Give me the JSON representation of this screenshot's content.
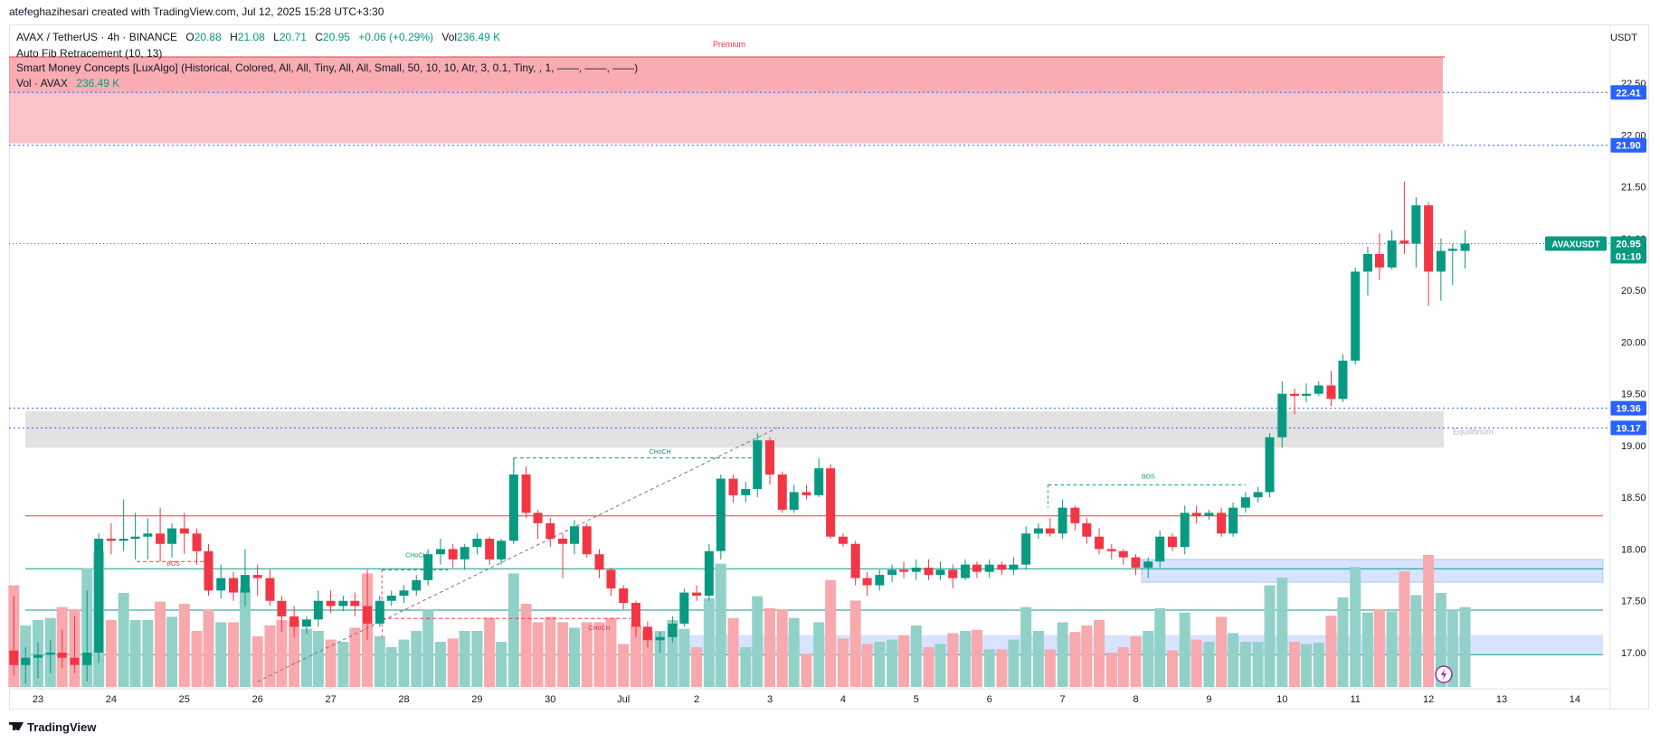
{
  "caption": "atefeghazihesari created with TradingView.com, Jul 12, 2025 15:28 UTC+3:30",
  "legend": {
    "symbol": "AVAX / TetherUS · 4h · BINANCE",
    "o_label": "O",
    "o_value": "20.88",
    "h_label": "H",
    "h_value": "21.08",
    "l_label": "L",
    "l_value": "20.71",
    "c_label": "C",
    "c_value": "20.95",
    "change": "+0.06 (+0.29%)",
    "vol_label": "Vol",
    "vol_value": "236.49 K",
    "indicator_fib": "Auto Fib Retracement (10, 13)",
    "indicator_smc": "Smart Money Concepts [LuxAlgo] (Historical, Colored, All, All, Tiny, All, All, Small, 50, 10, 10, Atr, 3, 0.1, Tiny, , 1, ——, ——, ——)",
    "indicator_vol": "Vol · AVAX",
    "indicator_vol_value": "236.49 K"
  },
  "currency_label": "USDT",
  "footer": "TradingView",
  "colors": {
    "up": "#089981",
    "down": "#f23645",
    "vol_up": "#92d1c8",
    "vol_down": "#f7a9ae"
  },
  "chart_data": {
    "type": "candlestick",
    "ylim": [
      16.7,
      22.75
    ],
    "yticks": [
      "17.00",
      "17.50",
      "18.00",
      "18.50",
      "19.00",
      "19.50",
      "20.00",
      "20.50",
      "21.00",
      "21.50",
      "22.00",
      "22.50"
    ],
    "xticks": [
      {
        "label": "23",
        "day": 23
      },
      {
        "label": "24",
        "day": 24
      },
      {
        "label": "25",
        "day": 25
      },
      {
        "label": "26",
        "day": 26
      },
      {
        "label": "27",
        "day": 27
      },
      {
        "label": "28",
        "day": 28
      },
      {
        "label": "29",
        "day": 29
      },
      {
        "label": "30",
        "day": 30
      },
      {
        "label": "Jul",
        "day": 31
      },
      {
        "label": "2",
        "day": 32
      },
      {
        "label": "3",
        "day": 33
      },
      {
        "label": "4",
        "day": 34
      },
      {
        "label": "5",
        "day": 35
      },
      {
        "label": "6",
        "day": 36
      },
      {
        "label": "7",
        "day": 37
      },
      {
        "label": "8",
        "day": 38
      },
      {
        "label": "9",
        "day": 39
      },
      {
        "label": "10",
        "day": 40
      },
      {
        "label": "11",
        "day": 41
      },
      {
        "label": "12",
        "day": 42
      },
      {
        "label": "13",
        "day": 43
      },
      {
        "label": "14",
        "day": 44
      }
    ],
    "price_tags": [
      {
        "label": "22.41",
        "value": 22.41,
        "color": "#2962ff"
      },
      {
        "label": "21.90",
        "value": 21.9,
        "color": "#2962ff"
      },
      {
        "label": "19.36",
        "value": 19.36,
        "color": "#2962ff"
      },
      {
        "label": "19.17",
        "value": 19.17,
        "color": "#2962ff"
      }
    ],
    "last_price": {
      "symbol": "AVAXUSDT",
      "price": "20.95",
      "countdown": "01:10",
      "value": 20.95
    },
    "zones": [
      {
        "name": "premium",
        "label": "Premium",
        "from": 21.92,
        "to": 22.78,
        "color": "#f23645"
      },
      {
        "name": "equilibrium",
        "label": "Equilibrium",
        "from": 18.98,
        "to": 19.33,
        "color": "#9e9e9e"
      }
    ],
    "structure_labels": [
      {
        "text": "BOS",
        "color": "#f23645",
        "day": 24.85,
        "value": 17.84
      },
      {
        "text": "CHoCH",
        "color": "#089981",
        "day": 28.17,
        "value": 17.92
      },
      {
        "text": "CHoCH",
        "color": "#f23645",
        "day": 30.67,
        "value": 17.22
      },
      {
        "text": "CHoCH",
        "color": "#089981",
        "day": 31.5,
        "value": 18.92
      },
      {
        "text": "BOS",
        "color": "#089981",
        "day": 38.17,
        "value": 18.68
      }
    ],
    "candles": [
      {
        "d": 22.67,
        "o": 17.02,
        "h": 17.55,
        "l": 16.78,
        "c": 16.88
      },
      {
        "d": 22.83,
        "o": 16.88,
        "h": 17.05,
        "l": 16.7,
        "c": 16.95
      },
      {
        "d": 23.0,
        "o": 16.95,
        "h": 17.1,
        "l": 16.75,
        "c": 16.98
      },
      {
        "d": 23.17,
        "o": 16.98,
        "h": 17.12,
        "l": 16.8,
        "c": 17.0
      },
      {
        "d": 23.33,
        "o": 17.0,
        "h": 17.22,
        "l": 16.85,
        "c": 16.95
      },
      {
        "d": 23.5,
        "o": 16.95,
        "h": 17.35,
        "l": 16.8,
        "c": 16.88
      },
      {
        "d": 23.67,
        "o": 16.88,
        "h": 17.6,
        "l": 16.72,
        "c": 17.0
      },
      {
        "d": 23.83,
        "o": 17.0,
        "h": 18.15,
        "l": 16.9,
        "c": 18.1
      },
      {
        "d": 24.0,
        "o": 18.1,
        "h": 18.25,
        "l": 17.95,
        "c": 18.08
      },
      {
        "d": 24.17,
        "o": 18.08,
        "h": 18.48,
        "l": 17.98,
        "c": 18.1
      },
      {
        "d": 24.33,
        "o": 18.1,
        "h": 18.35,
        "l": 17.9,
        "c": 18.12
      },
      {
        "d": 24.5,
        "o": 18.12,
        "h": 18.3,
        "l": 17.9,
        "c": 18.15
      },
      {
        "d": 24.67,
        "o": 18.15,
        "h": 18.4,
        "l": 17.88,
        "c": 18.05
      },
      {
        "d": 24.83,
        "o": 18.05,
        "h": 18.25,
        "l": 17.92,
        "c": 18.2
      },
      {
        "d": 25.0,
        "o": 18.2,
        "h": 18.35,
        "l": 17.95,
        "c": 18.15
      },
      {
        "d": 25.17,
        "o": 18.15,
        "h": 18.2,
        "l": 17.85,
        "c": 17.98
      },
      {
        "d": 25.33,
        "o": 17.98,
        "h": 18.05,
        "l": 17.55,
        "c": 17.6
      },
      {
        "d": 25.5,
        "o": 17.6,
        "h": 17.85,
        "l": 17.52,
        "c": 17.72
      },
      {
        "d": 25.67,
        "o": 17.72,
        "h": 17.78,
        "l": 17.5,
        "c": 17.58
      },
      {
        "d": 25.83,
        "o": 17.58,
        "h": 18.0,
        "l": 17.45,
        "c": 17.75
      },
      {
        "d": 26.0,
        "o": 17.75,
        "h": 17.85,
        "l": 17.55,
        "c": 17.72
      },
      {
        "d": 26.17,
        "o": 17.72,
        "h": 17.8,
        "l": 17.45,
        "c": 17.5
      },
      {
        "d": 26.33,
        "o": 17.5,
        "h": 17.55,
        "l": 17.2,
        "c": 17.35
      },
      {
        "d": 26.5,
        "o": 17.35,
        "h": 17.45,
        "l": 17.15,
        "c": 17.25
      },
      {
        "d": 26.67,
        "o": 17.25,
        "h": 17.35,
        "l": 17.18,
        "c": 17.32
      },
      {
        "d": 26.83,
        "o": 17.32,
        "h": 17.6,
        "l": 17.25,
        "c": 17.5
      },
      {
        "d": 27.0,
        "o": 17.5,
        "h": 17.6,
        "l": 17.38,
        "c": 17.45
      },
      {
        "d": 27.17,
        "o": 17.45,
        "h": 17.55,
        "l": 17.4,
        "c": 17.5
      },
      {
        "d": 27.33,
        "o": 17.5,
        "h": 17.58,
        "l": 17.35,
        "c": 17.45
      },
      {
        "d": 27.5,
        "o": 17.45,
        "h": 17.8,
        "l": 17.12,
        "c": 17.28
      },
      {
        "d": 27.67,
        "o": 17.28,
        "h": 17.55,
        "l": 17.25,
        "c": 17.5
      },
      {
        "d": 27.83,
        "o": 17.5,
        "h": 17.6,
        "l": 17.45,
        "c": 17.55
      },
      {
        "d": 28.0,
        "o": 17.55,
        "h": 17.65,
        "l": 17.48,
        "c": 17.6
      },
      {
        "d": 28.17,
        "o": 17.6,
        "h": 17.75,
        "l": 17.55,
        "c": 17.7
      },
      {
        "d": 28.33,
        "o": 17.7,
        "h": 18.0,
        "l": 17.65,
        "c": 17.95
      },
      {
        "d": 28.5,
        "o": 17.95,
        "h": 18.1,
        "l": 17.85,
        "c": 18.0
      },
      {
        "d": 28.67,
        "o": 18.0,
        "h": 18.05,
        "l": 17.82,
        "c": 17.9
      },
      {
        "d": 28.83,
        "o": 17.9,
        "h": 18.05,
        "l": 17.8,
        "c": 18.02
      },
      {
        "d": 29.0,
        "o": 18.02,
        "h": 18.15,
        "l": 17.95,
        "c": 18.1
      },
      {
        "d": 29.17,
        "o": 18.1,
        "h": 18.12,
        "l": 17.85,
        "c": 17.9
      },
      {
        "d": 29.33,
        "o": 17.9,
        "h": 18.1,
        "l": 17.85,
        "c": 18.08
      },
      {
        "d": 29.5,
        "o": 18.08,
        "h": 18.88,
        "l": 18.05,
        "c": 18.72
      },
      {
        "d": 29.67,
        "o": 18.72,
        "h": 18.8,
        "l": 18.3,
        "c": 18.35
      },
      {
        "d": 29.83,
        "o": 18.35,
        "h": 18.38,
        "l": 18.1,
        "c": 18.25
      },
      {
        "d": 30.0,
        "o": 18.25,
        "h": 18.3,
        "l": 18.02,
        "c": 18.1
      },
      {
        "d": 30.17,
        "o": 18.1,
        "h": 18.15,
        "l": 17.72,
        "c": 18.05
      },
      {
        "d": 30.33,
        "o": 18.05,
        "h": 18.28,
        "l": 17.95,
        "c": 18.22
      },
      {
        "d": 30.5,
        "o": 18.22,
        "h": 18.25,
        "l": 17.92,
        "c": 17.95
      },
      {
        "d": 30.67,
        "o": 17.95,
        "h": 18.0,
        "l": 17.72,
        "c": 17.8
      },
      {
        "d": 30.83,
        "o": 17.8,
        "h": 17.82,
        "l": 17.55,
        "c": 17.62
      },
      {
        "d": 31.0,
        "o": 17.62,
        "h": 17.65,
        "l": 17.42,
        "c": 17.48
      },
      {
        "d": 31.17,
        "o": 17.48,
        "h": 17.5,
        "l": 17.15,
        "c": 17.25
      },
      {
        "d": 31.33,
        "o": 17.25,
        "h": 17.3,
        "l": 17.05,
        "c": 17.12
      },
      {
        "d": 31.5,
        "o": 17.12,
        "h": 17.2,
        "l": 17.0,
        "c": 17.15
      },
      {
        "d": 31.67,
        "o": 17.15,
        "h": 17.35,
        "l": 17.1,
        "c": 17.28
      },
      {
        "d": 31.83,
        "o": 17.28,
        "h": 17.62,
        "l": 17.25,
        "c": 17.58
      },
      {
        "d": 32.0,
        "o": 17.58,
        "h": 17.65,
        "l": 17.5,
        "c": 17.55
      },
      {
        "d": 32.17,
        "o": 17.55,
        "h": 18.05,
        "l": 17.5,
        "c": 17.98
      },
      {
        "d": 32.33,
        "o": 17.98,
        "h": 18.72,
        "l": 17.9,
        "c": 18.68
      },
      {
        "d": 32.5,
        "o": 18.68,
        "h": 18.72,
        "l": 18.45,
        "c": 18.52
      },
      {
        "d": 32.67,
        "o": 18.52,
        "h": 18.65,
        "l": 18.45,
        "c": 18.58
      },
      {
        "d": 32.83,
        "o": 18.58,
        "h": 19.12,
        "l": 18.5,
        "c": 19.05
      },
      {
        "d": 33.0,
        "o": 19.05,
        "h": 19.08,
        "l": 18.62,
        "c": 18.72
      },
      {
        "d": 33.17,
        "o": 18.72,
        "h": 18.75,
        "l": 18.35,
        "c": 18.38
      },
      {
        "d": 33.33,
        "o": 18.38,
        "h": 18.62,
        "l": 18.35,
        "c": 18.55
      },
      {
        "d": 33.5,
        "o": 18.55,
        "h": 18.62,
        "l": 18.48,
        "c": 18.52
      },
      {
        "d": 33.67,
        "o": 18.52,
        "h": 18.88,
        "l": 18.5,
        "c": 18.78
      },
      {
        "d": 33.83,
        "o": 18.78,
        "h": 18.82,
        "l": 18.1,
        "c": 18.12
      },
      {
        "d": 34.0,
        "o": 18.12,
        "h": 18.15,
        "l": 18.02,
        "c": 18.05
      },
      {
        "d": 34.17,
        "o": 18.05,
        "h": 18.08,
        "l": 17.65,
        "c": 17.72
      },
      {
        "d": 34.33,
        "o": 17.72,
        "h": 17.78,
        "l": 17.55,
        "c": 17.65
      },
      {
        "d": 34.5,
        "o": 17.65,
        "h": 17.8,
        "l": 17.6,
        "c": 17.75
      },
      {
        "d": 34.67,
        "o": 17.75,
        "h": 17.85,
        "l": 17.68,
        "c": 17.8
      },
      {
        "d": 34.83,
        "o": 17.8,
        "h": 17.88,
        "l": 17.72,
        "c": 17.78
      },
      {
        "d": 35.0,
        "o": 17.78,
        "h": 17.9,
        "l": 17.7,
        "c": 17.82
      },
      {
        "d": 35.17,
        "o": 17.82,
        "h": 17.9,
        "l": 17.7,
        "c": 17.75
      },
      {
        "d": 35.33,
        "o": 17.75,
        "h": 17.88,
        "l": 17.7,
        "c": 17.8
      },
      {
        "d": 35.5,
        "o": 17.8,
        "h": 17.85,
        "l": 17.62,
        "c": 17.72
      },
      {
        "d": 35.67,
        "o": 17.72,
        "h": 17.9,
        "l": 17.7,
        "c": 17.85
      },
      {
        "d": 35.83,
        "o": 17.85,
        "h": 17.88,
        "l": 17.72,
        "c": 17.78
      },
      {
        "d": 36.0,
        "o": 17.78,
        "h": 17.9,
        "l": 17.72,
        "c": 17.85
      },
      {
        "d": 36.17,
        "o": 17.85,
        "h": 17.88,
        "l": 17.75,
        "c": 17.8
      },
      {
        "d": 36.33,
        "o": 17.8,
        "h": 17.92,
        "l": 17.75,
        "c": 17.85
      },
      {
        "d": 36.5,
        "o": 17.85,
        "h": 18.22,
        "l": 17.8,
        "c": 18.15
      },
      {
        "d": 36.67,
        "o": 18.15,
        "h": 18.25,
        "l": 18.1,
        "c": 18.2
      },
      {
        "d": 36.83,
        "o": 18.2,
        "h": 18.3,
        "l": 18.12,
        "c": 18.15
      },
      {
        "d": 37.0,
        "o": 18.15,
        "h": 18.48,
        "l": 18.1,
        "c": 18.4
      },
      {
        "d": 37.17,
        "o": 18.4,
        "h": 18.42,
        "l": 18.18,
        "c": 18.25
      },
      {
        "d": 37.33,
        "o": 18.25,
        "h": 18.3,
        "l": 18.05,
        "c": 18.12
      },
      {
        "d": 37.5,
        "o": 18.12,
        "h": 18.2,
        "l": 17.95,
        "c": 18.0
      },
      {
        "d": 37.67,
        "o": 18.0,
        "h": 18.05,
        "l": 17.9,
        "c": 17.98
      },
      {
        "d": 37.83,
        "o": 17.98,
        "h": 18.0,
        "l": 17.85,
        "c": 17.92
      },
      {
        "d": 38.0,
        "o": 17.92,
        "h": 17.95,
        "l": 17.75,
        "c": 17.82
      },
      {
        "d": 38.17,
        "o": 17.82,
        "h": 17.92,
        "l": 17.72,
        "c": 17.88
      },
      {
        "d": 38.33,
        "o": 17.88,
        "h": 18.18,
        "l": 17.82,
        "c": 18.12
      },
      {
        "d": 38.5,
        "o": 18.12,
        "h": 18.15,
        "l": 17.98,
        "c": 18.02
      },
      {
        "d": 38.67,
        "o": 18.02,
        "h": 18.42,
        "l": 17.95,
        "c": 18.35
      },
      {
        "d": 38.83,
        "o": 18.35,
        "h": 18.42,
        "l": 18.25,
        "c": 18.32
      },
      {
        "d": 39.0,
        "o": 18.32,
        "h": 18.38,
        "l": 18.28,
        "c": 18.35
      },
      {
        "d": 39.17,
        "o": 18.35,
        "h": 18.4,
        "l": 18.12,
        "c": 18.15
      },
      {
        "d": 39.33,
        "o": 18.15,
        "h": 18.45,
        "l": 18.12,
        "c": 18.4
      },
      {
        "d": 39.5,
        "o": 18.4,
        "h": 18.55,
        "l": 18.35,
        "c": 18.5
      },
      {
        "d": 39.67,
        "o": 18.5,
        "h": 18.6,
        "l": 18.45,
        "c": 18.55
      },
      {
        "d": 39.83,
        "o": 18.55,
        "h": 19.12,
        "l": 18.5,
        "c": 19.08
      },
      {
        "d": 40.0,
        "o": 19.08,
        "h": 19.62,
        "l": 18.98,
        "c": 19.5
      },
      {
        "d": 40.17,
        "o": 19.5,
        "h": 19.55,
        "l": 19.3,
        "c": 19.48
      },
      {
        "d": 40.33,
        "o": 19.48,
        "h": 19.6,
        "l": 19.42,
        "c": 19.5
      },
      {
        "d": 40.5,
        "o": 19.5,
        "h": 19.62,
        "l": 19.48,
        "c": 19.58
      },
      {
        "d": 40.67,
        "o": 19.58,
        "h": 19.72,
        "l": 19.38,
        "c": 19.45
      },
      {
        "d": 40.83,
        "o": 19.45,
        "h": 19.88,
        "l": 19.42,
        "c": 19.82
      },
      {
        "d": 41.0,
        "o": 19.82,
        "h": 20.72,
        "l": 19.78,
        "c": 20.68
      },
      {
        "d": 41.17,
        "o": 20.68,
        "h": 20.92,
        "l": 20.45,
        "c": 20.85
      },
      {
        "d": 41.33,
        "o": 20.85,
        "h": 21.05,
        "l": 20.6,
        "c": 20.72
      },
      {
        "d": 41.5,
        "o": 20.72,
        "h": 21.08,
        "l": 20.7,
        "c": 20.98
      },
      {
        "d": 41.67,
        "o": 20.98,
        "h": 21.55,
        "l": 20.85,
        "c": 20.95
      },
      {
        "d": 41.83,
        "o": 20.95,
        "h": 21.4,
        "l": 20.72,
        "c": 21.32
      },
      {
        "d": 42.0,
        "o": 21.32,
        "h": 21.35,
        "l": 20.35,
        "c": 20.68
      },
      {
        "d": 42.17,
        "o": 20.68,
        "h": 21.0,
        "l": 20.4,
        "c": 20.88
      },
      {
        "d": 42.33,
        "o": 20.88,
        "h": 20.95,
        "l": 20.55,
        "c": 20.9
      },
      {
        "d": 42.5,
        "o": 20.88,
        "h": 21.08,
        "l": 20.71,
        "c": 20.95
      }
    ],
    "volume_ylim": [
      0,
      1
    ]
  }
}
